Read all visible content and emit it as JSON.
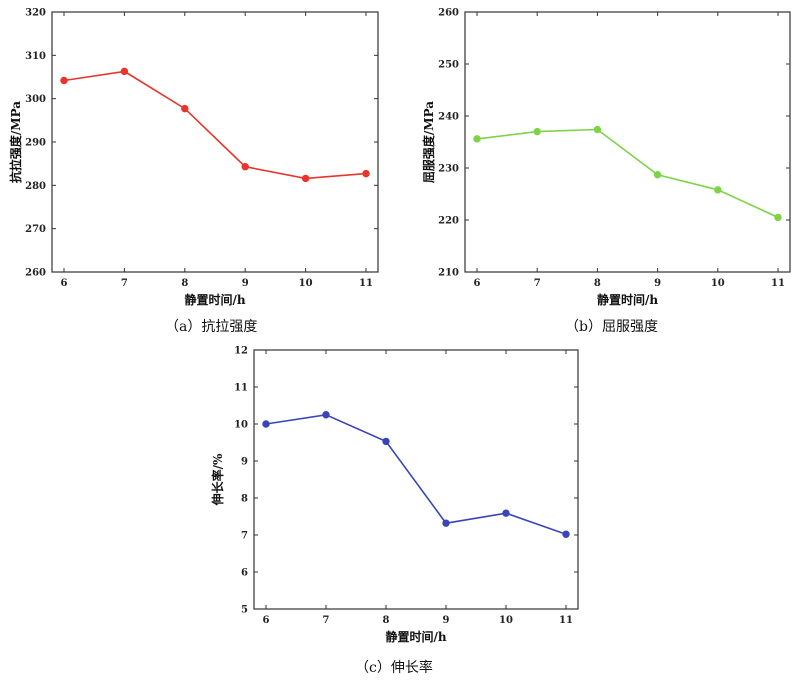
{
  "chart_data": [
    {
      "type": "line",
      "caption": "（a）抗拉强度",
      "xlabel": "静置时间/h",
      "ylabel": "抗拉强度/MPa",
      "x": [
        6,
        7,
        8,
        9,
        10,
        11
      ],
      "xticks": [
        "6",
        "7",
        "8",
        "9",
        "10",
        "11"
      ],
      "ylim": [
        260,
        320
      ],
      "yticks": [
        "260",
        "270",
        "280",
        "290",
        "300",
        "310",
        "320"
      ],
      "color": "#e8352b",
      "series": [
        {
          "values": [
            304.2,
            306.3,
            297.7,
            284.3,
            281.6,
            282.7
          ]
        }
      ]
    },
    {
      "type": "line",
      "caption": "（b）屈服强度",
      "xlabel": "静置时间/h",
      "ylabel": "屈服强度/MPa",
      "x": [
        6,
        7,
        8,
        9,
        10,
        11
      ],
      "xticks": [
        "6",
        "7",
        "8",
        "9",
        "10",
        "11"
      ],
      "ylim": [
        210,
        260
      ],
      "yticks": [
        "210",
        "220",
        "230",
        "240",
        "250",
        "260"
      ],
      "color": "#7ed348",
      "series": [
        {
          "values": [
            235.6,
            237.0,
            237.4,
            228.7,
            225.8,
            220.5
          ]
        }
      ]
    },
    {
      "type": "line",
      "caption": "（c）伸长率",
      "xlabel": "静置时间/h",
      "ylabel": "伸长率/%",
      "x": [
        6,
        7,
        8,
        9,
        10,
        11
      ],
      "xticks": [
        "6",
        "7",
        "8",
        "9",
        "10",
        "11"
      ],
      "ylim": [
        5,
        12
      ],
      "yticks": [
        "5",
        "6",
        "7",
        "8",
        "9",
        "10",
        "11",
        "12"
      ],
      "color": "#3a46b8",
      "series": [
        {
          "values": [
            10.0,
            10.25,
            9.53,
            7.32,
            7.59,
            7.02
          ]
        }
      ]
    }
  ]
}
